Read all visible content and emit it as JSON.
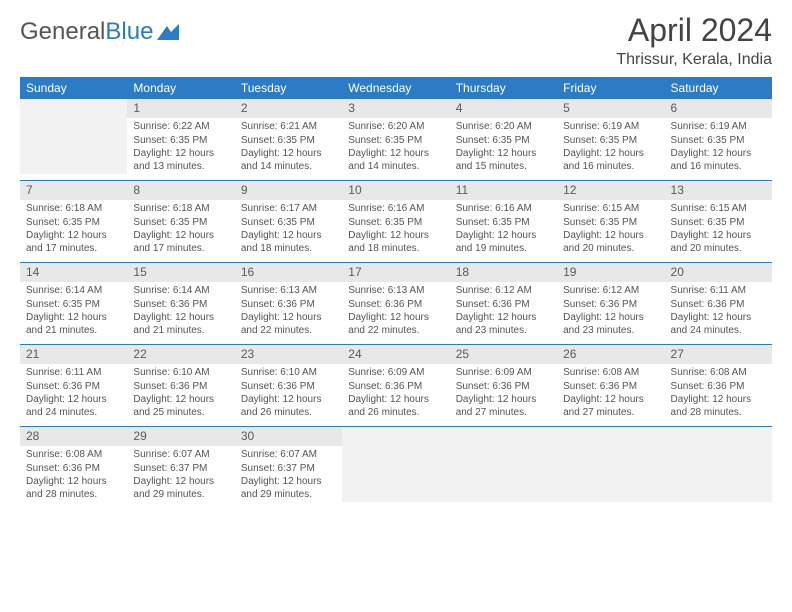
{
  "logo": {
    "text1": "General",
    "text2": "Blue"
  },
  "title": "April 2024",
  "location": "Thrissur, Kerala, India",
  "colors": {
    "header_bg": "#2b7cc4",
    "header_fg": "#ffffff",
    "daynum_bg": "#e8e8e8",
    "border": "#2b7cc4",
    "text": "#555555"
  },
  "weekdays": [
    "Sunday",
    "Monday",
    "Tuesday",
    "Wednesday",
    "Thursday",
    "Friday",
    "Saturday"
  ],
  "days": [
    {
      "n": 1,
      "sr": "6:22 AM",
      "ss": "6:35 PM",
      "dl": "12 hours and 13 minutes."
    },
    {
      "n": 2,
      "sr": "6:21 AM",
      "ss": "6:35 PM",
      "dl": "12 hours and 14 minutes."
    },
    {
      "n": 3,
      "sr": "6:20 AM",
      "ss": "6:35 PM",
      "dl": "12 hours and 14 minutes."
    },
    {
      "n": 4,
      "sr": "6:20 AM",
      "ss": "6:35 PM",
      "dl": "12 hours and 15 minutes."
    },
    {
      "n": 5,
      "sr": "6:19 AM",
      "ss": "6:35 PM",
      "dl": "12 hours and 16 minutes."
    },
    {
      "n": 6,
      "sr": "6:19 AM",
      "ss": "6:35 PM",
      "dl": "12 hours and 16 minutes."
    },
    {
      "n": 7,
      "sr": "6:18 AM",
      "ss": "6:35 PM",
      "dl": "12 hours and 17 minutes."
    },
    {
      "n": 8,
      "sr": "6:18 AM",
      "ss": "6:35 PM",
      "dl": "12 hours and 17 minutes."
    },
    {
      "n": 9,
      "sr": "6:17 AM",
      "ss": "6:35 PM",
      "dl": "12 hours and 18 minutes."
    },
    {
      "n": 10,
      "sr": "6:16 AM",
      "ss": "6:35 PM",
      "dl": "12 hours and 18 minutes."
    },
    {
      "n": 11,
      "sr": "6:16 AM",
      "ss": "6:35 PM",
      "dl": "12 hours and 19 minutes."
    },
    {
      "n": 12,
      "sr": "6:15 AM",
      "ss": "6:35 PM",
      "dl": "12 hours and 20 minutes."
    },
    {
      "n": 13,
      "sr": "6:15 AM",
      "ss": "6:35 PM",
      "dl": "12 hours and 20 minutes."
    },
    {
      "n": 14,
      "sr": "6:14 AM",
      "ss": "6:35 PM",
      "dl": "12 hours and 21 minutes."
    },
    {
      "n": 15,
      "sr": "6:14 AM",
      "ss": "6:36 PM",
      "dl": "12 hours and 21 minutes."
    },
    {
      "n": 16,
      "sr": "6:13 AM",
      "ss": "6:36 PM",
      "dl": "12 hours and 22 minutes."
    },
    {
      "n": 17,
      "sr": "6:13 AM",
      "ss": "6:36 PM",
      "dl": "12 hours and 22 minutes."
    },
    {
      "n": 18,
      "sr": "6:12 AM",
      "ss": "6:36 PM",
      "dl": "12 hours and 23 minutes."
    },
    {
      "n": 19,
      "sr": "6:12 AM",
      "ss": "6:36 PM",
      "dl": "12 hours and 23 minutes."
    },
    {
      "n": 20,
      "sr": "6:11 AM",
      "ss": "6:36 PM",
      "dl": "12 hours and 24 minutes."
    },
    {
      "n": 21,
      "sr": "6:11 AM",
      "ss": "6:36 PM",
      "dl": "12 hours and 24 minutes."
    },
    {
      "n": 22,
      "sr": "6:10 AM",
      "ss": "6:36 PM",
      "dl": "12 hours and 25 minutes."
    },
    {
      "n": 23,
      "sr": "6:10 AM",
      "ss": "6:36 PM",
      "dl": "12 hours and 26 minutes."
    },
    {
      "n": 24,
      "sr": "6:09 AM",
      "ss": "6:36 PM",
      "dl": "12 hours and 26 minutes."
    },
    {
      "n": 25,
      "sr": "6:09 AM",
      "ss": "6:36 PM",
      "dl": "12 hours and 27 minutes."
    },
    {
      "n": 26,
      "sr": "6:08 AM",
      "ss": "6:36 PM",
      "dl": "12 hours and 27 minutes."
    },
    {
      "n": 27,
      "sr": "6:08 AM",
      "ss": "6:36 PM",
      "dl": "12 hours and 28 minutes."
    },
    {
      "n": 28,
      "sr": "6:08 AM",
      "ss": "6:36 PM",
      "dl": "12 hours and 28 minutes."
    },
    {
      "n": 29,
      "sr": "6:07 AM",
      "ss": "6:37 PM",
      "dl": "12 hours and 29 minutes."
    },
    {
      "n": 30,
      "sr": "6:07 AM",
      "ss": "6:37 PM",
      "dl": "12 hours and 29 minutes."
    }
  ],
  "labels": {
    "sunrise": "Sunrise:",
    "sunset": "Sunset:",
    "daylight": "Daylight:"
  },
  "first_weekday_index": 1
}
